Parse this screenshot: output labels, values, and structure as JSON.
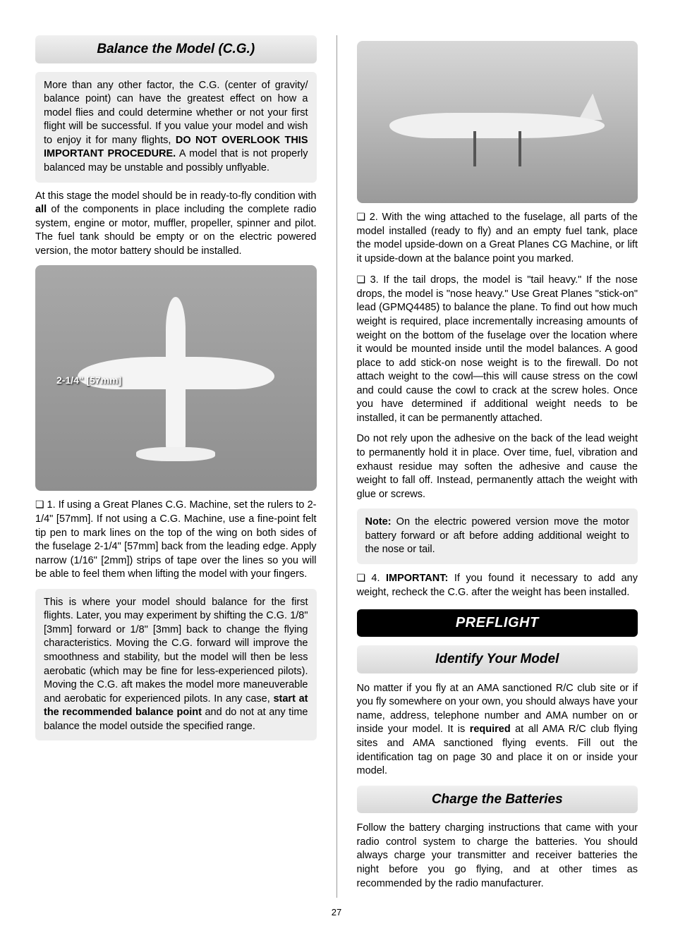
{
  "left": {
    "heading1": "Balance the Model (C.G.)",
    "intro_note_pre": "More than any other factor, the C.G. (center of gravity/ balance point) can have the greatest effect on how a model flies and could determine whether or not your first flight will be successful. If you value your model and wish to enjoy it for many flights, ",
    "intro_note_bold": "DO NOT OVERLOOK THIS IMPORTANT PROCEDURE.",
    "intro_note_post": " A model that is not properly balanced may be unstable and possibly unflyable.",
    "para1_pre": "At this stage the model should be in ready-to-fly condition with ",
    "para1_bold": "all",
    "para1_post": " of the components in place including the complete radio system, engine or motor, muffler, propeller, spinner and pilot. The fuel tank should be empty or on the electric powered version, the motor battery should be installed.",
    "img1_label": "2-1/4\" [57mm]",
    "step1": "1. If using a Great Planes C.G. Machine, set the rulers to 2-1/4\" [57mm]. If not using a C.G. Machine, use a fine-point felt tip pen to mark lines on the top of the wing on both sides of the fuselage 2-1/4\" [57mm] back from the leading edge. Apply narrow (1/16\" [2mm]) strips of tape over the lines so you will be able to feel them when lifting the model with your fingers.",
    "balance_note_pre": "This is where your model should balance for the first flights. Later, you may experiment by shifting the C.G. 1/8\" [3mm] forward or 1/8\" [3mm] back to change the flying characteristics. Moving the C.G. forward will improve the smoothness and stability, but the model will then be less aerobatic (which may be fine for less-experienced pilots). Moving the C.G. aft makes the model more maneuverable and aerobatic for experienced pilots. In any case, ",
    "balance_note_bold": "start at the recommended balance point",
    "balance_note_post": " and do not at any time balance the model outside the specified range."
  },
  "right": {
    "step2": "2. With the wing attached to the fuselage, all parts of the model installed (ready to fly) and an empty fuel tank, place the model upside-down on a Great Planes CG Machine, or lift it upside-down at the balance point you marked.",
    "step3": "3. If the tail drops, the model is \"tail heavy.\" If the nose drops, the model is \"nose heavy.\" Use Great Planes \"stick-on\" lead (GPMQ4485) to balance the plane. To find out how much weight is required, place incrementally increasing amounts of weight on the bottom of the fuselage over the location where it would be mounted inside until the model balances. A good place to add stick-on nose weight is to the firewall. Do not attach weight to the cowl—this will cause stress on the cowl and could cause the cowl to crack at the screw holes. Once you have determined if additional weight needs to be installed, it can be permanently attached.",
    "para_adhesive": "Do not rely upon the adhesive on the back of the lead weight to permanently hold it in place. Over time, fuel, vibration and exhaust residue may soften the adhesive and cause the weight to fall off. Instead, permanently attach the weight with glue or screws.",
    "elec_note_bold": "Note:",
    "elec_note": " On the electric powered version move the motor battery forward or aft before adding additional weight to the nose or tail.",
    "step4_pre": "4. ",
    "step4_bold": "IMPORTANT:",
    "step4_post": " If you found it necessary to add any weight, recheck the C.G. after the weight has been installed.",
    "major_heading": "PREFLIGHT",
    "heading2": "Identify Your Model",
    "identify_pre": "No matter if you fly at an AMA sanctioned R/C club site or if you fly somewhere on your own, you should always have your name, address, telephone number and AMA number on or inside your model. It is ",
    "identify_bold": "required",
    "identify_post": " at all AMA R/C club flying sites and AMA sanctioned flying events. Fill out the identification tag on page 30 and place it on or inside your model.",
    "heading3": "Charge the Batteries",
    "charge": "Follow the battery charging instructions that came with your radio control system to charge the batteries. You should always charge your transmitter and receiver batteries the night before you go flying, and at other times as recommended by the radio manufacturer."
  },
  "page_number": "27"
}
